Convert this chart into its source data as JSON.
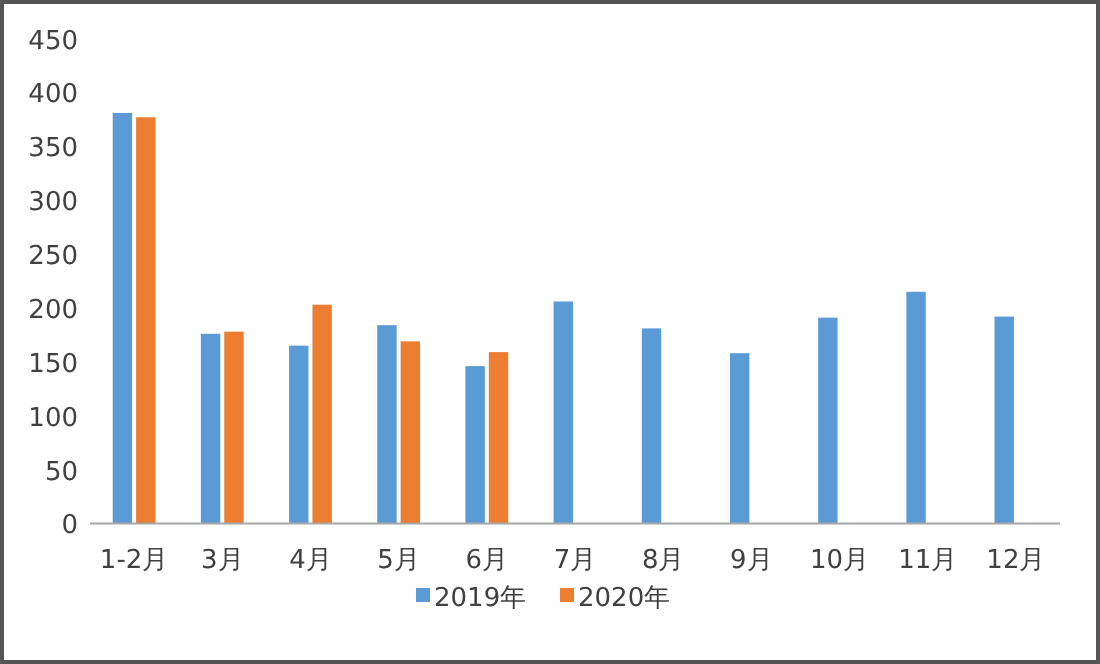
{
  "chart_data": {
    "type": "bar",
    "categories": [
      "1-2月",
      "3月",
      "4月",
      "5月",
      "6月",
      "7月",
      "8月",
      "9月",
      "10月",
      "11月",
      "12月"
    ],
    "series": [
      {
        "name": "2019年",
        "color": "#5b9bd5",
        "values": [
          381,
          176,
          165,
          184,
          146,
          206,
          181,
          158,
          191,
          215,
          192
        ]
      },
      {
        "name": "2020年",
        "color": "#ed7d31",
        "values": [
          377,
          178,
          203,
          169,
          159,
          null,
          null,
          null,
          null,
          null,
          null
        ]
      }
    ],
    "ylim": [
      0,
      450
    ],
    "yticks": [
      0,
      50,
      100,
      150,
      200,
      250,
      300,
      350,
      400,
      450
    ],
    "grid": false,
    "legend": "bottom"
  }
}
